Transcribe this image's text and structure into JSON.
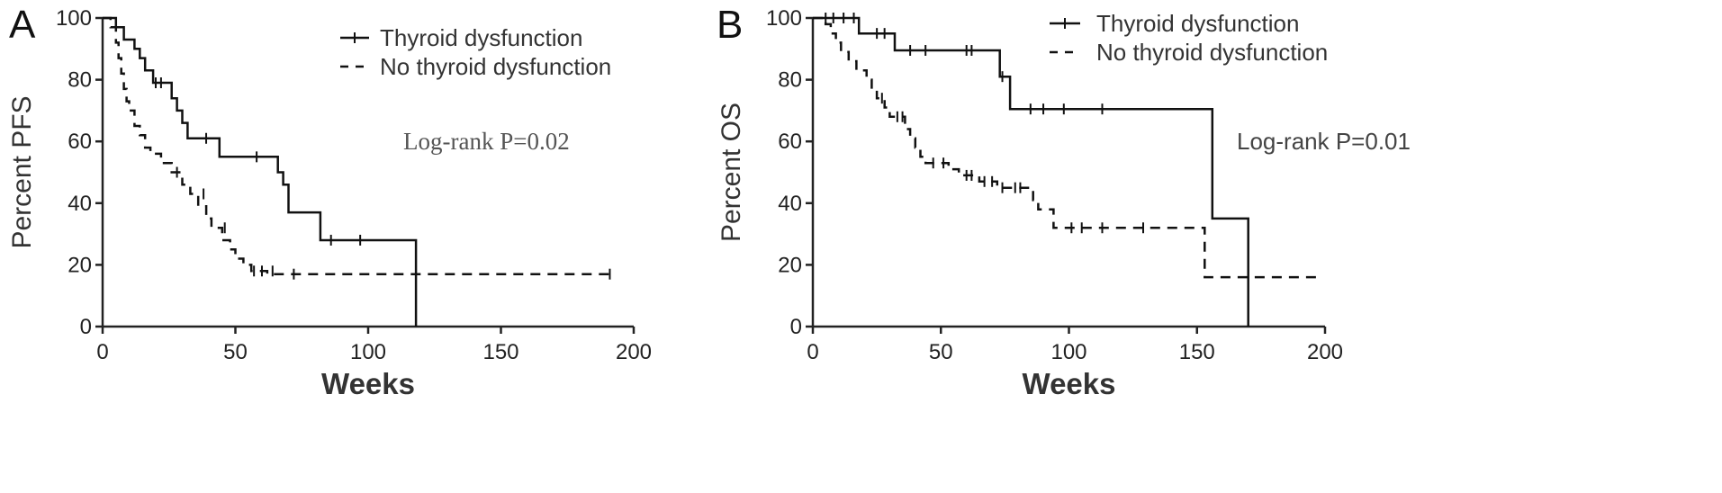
{
  "chart_data": [
    {
      "type": "line",
      "panel_label": "A",
      "xlabel": "Weeks",
      "ylabel": "Percent PFS",
      "xlim": [
        0,
        200
      ],
      "ylim": [
        0,
        100
      ],
      "xticks": [
        0,
        50,
        100,
        150,
        200
      ],
      "yticks": [
        0,
        20,
        40,
        60,
        80,
        100
      ],
      "annotation": "Log-rank P=0.02",
      "legend_position": "top-right",
      "series": [
        {
          "name": "Thyroid dysfunction",
          "style": "solid",
          "steps": [
            [
              0,
              100
            ],
            [
              5,
              100
            ],
            [
              5,
              97
            ],
            [
              8,
              97
            ],
            [
              8,
              93
            ],
            [
              12,
              93
            ],
            [
              12,
              90
            ],
            [
              14,
              90
            ],
            [
              14,
              87
            ],
            [
              16,
              87
            ],
            [
              16,
              83
            ],
            [
              19,
              83
            ],
            [
              19,
              79
            ],
            [
              26,
              79
            ],
            [
              26,
              74
            ],
            [
              28,
              74
            ],
            [
              28,
              70
            ],
            [
              30,
              70
            ],
            [
              30,
              66
            ],
            [
              32,
              66
            ],
            [
              32,
              61
            ],
            [
              44,
              61
            ],
            [
              44,
              55
            ],
            [
              66,
              55
            ],
            [
              66,
              50
            ],
            [
              68,
              50
            ],
            [
              68,
              46
            ],
            [
              70,
              46
            ],
            [
              70,
              37
            ],
            [
              82,
              37
            ],
            [
              82,
              28
            ],
            [
              118,
              28
            ],
            [
              118,
              0
            ]
          ],
          "censored": [
            [
              20,
              79
            ],
            [
              22,
              79
            ],
            [
              39,
              61
            ],
            [
              58,
              55
            ],
            [
              86,
              28
            ],
            [
              97,
              28
            ]
          ]
        },
        {
          "name": "No thyroid dysfunction",
          "style": "dashed",
          "steps": [
            [
              0,
              100
            ],
            [
              3,
              100
            ],
            [
              3,
              97
            ],
            [
              5,
              97
            ],
            [
              5,
              92
            ],
            [
              6,
              92
            ],
            [
              6,
              87
            ],
            [
              7,
              87
            ],
            [
              7,
              82
            ],
            [
              8,
              82
            ],
            [
              8,
              77
            ],
            [
              9,
              77
            ],
            [
              9,
              73
            ],
            [
              10,
              73
            ],
            [
              10,
              70
            ],
            [
              12,
              70
            ],
            [
              12,
              65
            ],
            [
              14,
              65
            ],
            [
              14,
              62
            ],
            [
              16,
              62
            ],
            [
              16,
              58
            ],
            [
              18,
              58
            ],
            [
              18,
              56
            ],
            [
              22,
              56
            ],
            [
              22,
              53
            ],
            [
              26,
              53
            ],
            [
              26,
              50
            ],
            [
              30,
              50
            ],
            [
              30,
              46
            ],
            [
              33,
              46
            ],
            [
              33,
              43
            ],
            [
              36,
              43
            ],
            [
              36,
              39
            ],
            [
              39,
              39
            ],
            [
              39,
              35
            ],
            [
              41,
              35
            ],
            [
              41,
              32
            ],
            [
              45,
              32
            ],
            [
              45,
              28
            ],
            [
              48,
              28
            ],
            [
              48,
              25
            ],
            [
              50,
              25
            ],
            [
              50,
              22
            ],
            [
              53,
              22
            ],
            [
              53,
              20
            ],
            [
              56,
              20
            ],
            [
              56,
              18
            ],
            [
              62,
              18
            ],
            [
              62,
              17
            ],
            [
              192,
              17
            ]
          ],
          "censored": [
            [
              28,
              50
            ],
            [
              38,
              43
            ],
            [
              46,
              32
            ],
            [
              57,
              18
            ],
            [
              60,
              18
            ],
            [
              64,
              18
            ],
            [
              72,
              17
            ],
            [
              191,
              17
            ]
          ]
        }
      ]
    },
    {
      "type": "line",
      "panel_label": "B",
      "xlabel": "Weeks",
      "ylabel": "Percent OS",
      "xlim": [
        0,
        200
      ],
      "ylim": [
        0,
        100
      ],
      "xticks": [
        0,
        50,
        100,
        150,
        200
      ],
      "yticks": [
        0,
        20,
        40,
        60,
        80,
        100
      ],
      "annotation": "Log-rank P=0.01",
      "legend_position": "top-right",
      "series": [
        {
          "name": "Thyroid dysfunction",
          "style": "solid",
          "steps": [
            [
              0,
              100
            ],
            [
              18,
              100
            ],
            [
              18,
              95
            ],
            [
              32,
              95
            ],
            [
              32,
              89.5
            ],
            [
              73,
              89.5
            ],
            [
              73,
              81
            ],
            [
              77,
              81
            ],
            [
              77,
              70.5
            ],
            [
              156,
              70.5
            ],
            [
              156,
              35
            ],
            [
              170,
              35
            ],
            [
              170,
              0
            ]
          ],
          "censored": [
            [
              5,
              100
            ],
            [
              8,
              100
            ],
            [
              12,
              100
            ],
            [
              16,
              100
            ],
            [
              25,
              95
            ],
            [
              28,
              95
            ],
            [
              38,
              89.5
            ],
            [
              44,
              89.5
            ],
            [
              60,
              89.5
            ],
            [
              62,
              89.5
            ],
            [
              74,
              81
            ],
            [
              85,
              70.5
            ],
            [
              90,
              70.5
            ],
            [
              98,
              70.5
            ],
            [
              113,
              70.5
            ]
          ]
        },
        {
          "name": "No thyroid dysfunction",
          "style": "dashed",
          "steps": [
            [
              0,
              100
            ],
            [
              5,
              100
            ],
            [
              5,
              98
            ],
            [
              7,
              98
            ],
            [
              7,
              95
            ],
            [
              9,
              95
            ],
            [
              9,
              92
            ],
            [
              11,
              92
            ],
            [
              11,
              89
            ],
            [
              14,
              89
            ],
            [
              14,
              86
            ],
            [
              17,
              86
            ],
            [
              17,
              83
            ],
            [
              21,
              83
            ],
            [
              21,
              80
            ],
            [
              23,
              80
            ],
            [
              23,
              77
            ],
            [
              25,
              77
            ],
            [
              25,
              74
            ],
            [
              28,
              74
            ],
            [
              28,
              71
            ],
            [
              30,
              71
            ],
            [
              30,
              68
            ],
            [
              36,
              68
            ],
            [
              36,
              64
            ],
            [
              38,
              64
            ],
            [
              38,
              61
            ],
            [
              40,
              61
            ],
            [
              40,
              58
            ],
            [
              42,
              58
            ],
            [
              42,
              55
            ],
            [
              44,
              55
            ],
            [
              44,
              53
            ],
            [
              53,
              53
            ],
            [
              53,
              51
            ],
            [
              57,
              51
            ],
            [
              57,
              49
            ],
            [
              65,
              49
            ],
            [
              65,
              47
            ],
            [
              72,
              47
            ],
            [
              72,
              45
            ],
            [
              86,
              45
            ],
            [
              86,
              41
            ],
            [
              88,
              41
            ],
            [
              88,
              38
            ],
            [
              94,
              38
            ],
            [
              94,
              32
            ],
            [
              153,
              32
            ],
            [
              153,
              16
            ],
            [
              198,
              16
            ]
          ],
          "censored": [
            [
              27,
              74
            ],
            [
              33,
              68
            ],
            [
              35,
              68
            ],
            [
              47,
              53
            ],
            [
              51,
              53
            ],
            [
              60,
              49
            ],
            [
              62,
              49
            ],
            [
              67,
              47
            ],
            [
              70,
              47
            ],
            [
              74,
              45
            ],
            [
              79,
              45
            ],
            [
              81,
              45
            ],
            [
              101,
              32
            ],
            [
              105,
              32
            ],
            [
              113,
              32
            ],
            [
              129,
              32
            ]
          ]
        }
      ]
    }
  ]
}
